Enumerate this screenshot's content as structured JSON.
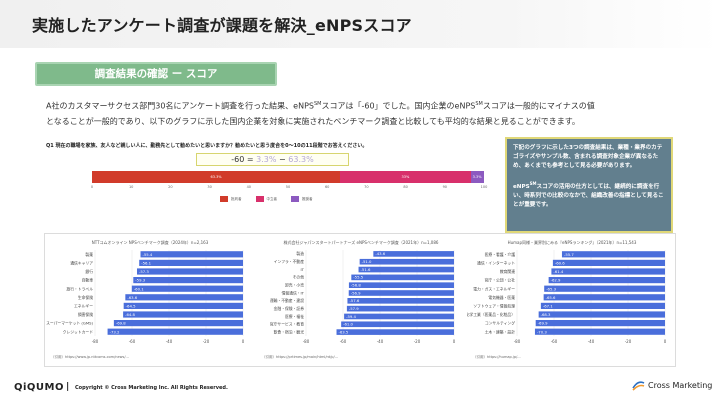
{
  "title": "実施したアンケート調査が課題を解決_eNPSスコア",
  "section_tag": "調査結果の確認 ー スコア",
  "intro": {
    "line1_a": "A社のカスタマーサクセス部門30名にアンケート調査を行った結果、eNPS",
    "sm": "SM",
    "line1_b": "スコアは「-60」でした。国内企業のeNPS",
    "line1_c": "スコアは一般的にマイナスの値",
    "line2": "となることが一般的であり、以下のグラフに示した国内企業を対象に実施されたベンチマーク調査と比較しても平均的な結果と見ることができます。"
  },
  "question": {
    "text": "Q1 現在の職場を家族、友人など親しい人に、勤務先として勧めたいと思いますか？勧めたいと思う度合を0〜10の11段階でお答えください。",
    "formula_value": "-60 = ",
    "formula_a": "3.3%",
    "formula_sep": " − ",
    "formula_b": "63.3%"
  },
  "stack_chart": {
    "segments": [
      {
        "name": "批判者",
        "value": 63.3,
        "label": "63.3%",
        "color": "#d13b2a"
      },
      {
        "name": "中立者",
        "value": 33.3,
        "label": "33%",
        "color": "#d8306b"
      },
      {
        "name": "推奨者",
        "value": 3.3,
        "label": "3.3%",
        "color": "#8c5ac0"
      }
    ],
    "axis": [
      "0",
      "10",
      "20",
      "30",
      "40",
      "50",
      "60",
      "70",
      "80",
      "90",
      "100"
    ],
    "legend": [
      "批判者",
      "中立者",
      "推奨者"
    ]
  },
  "note": {
    "p1": "下記のグラフに示した3つの調査結果は、業種・業界のカテゴライズやサンプル数、含まれる調査対象企業が異なるため、あくまでも参考として見る必要があります。",
    "p2a": "eNPS",
    "p2sm": "SM",
    "p2b": "スコアの活用の仕方としては、継続的に調査を行い、時系列での比較のなかで、組織改善の指標として見ることが重要です。"
  },
  "chart_data": [
    {
      "type": "bar",
      "orientation": "horizontal",
      "title": "NTTコムオンライン NPSベンチマーク調査（2024年）n=2,163",
      "categories": [
        "製薬",
        "通信キャリア",
        "銀行",
        "自動車",
        "旅行・トラベル",
        "生命保険",
        "エネルギー",
        "損害保険",
        "スーパーマーケット (GMS)",
        "クレジットカード"
      ],
      "values": [
        -55.4,
        -56.1,
        -57.3,
        -59.3,
        -60.1,
        -63.6,
        -64.5,
        -64.8,
        -69.8,
        -73.2
      ],
      "xlim": [
        -80,
        0
      ],
      "xticks": [
        "-80",
        "-60",
        "-40",
        "-20",
        "0"
      ],
      "source": "（引用）https://www.jp.nttcoms.com/news/..."
    },
    {
      "type": "bar",
      "orientation": "horizontal",
      "title": "株式会社ジャパンスタートパートナーズ eNPSベンチマーク調査（2021年）n=1,086",
      "categories": [
        "製造",
        "インフラ・不動産",
        "IT",
        "その他",
        "卸売・小売",
        "情報通信・IT",
        "運輸・不動産・建設",
        "金融・保険・証券",
        "医療・福祉",
        "官庁サービス・教育",
        "飲食・宿泊・観光"
      ],
      "values": [
        -43.6,
        -51.0,
        -51.6,
        -55.5,
        -56.8,
        -56.9,
        -57.6,
        -57.9,
        -59.4,
        -61.0,
        -63.5
      ],
      "xlim": [
        -80,
        0
      ],
      "xticks": [
        "-80",
        "-60",
        "-40",
        "-20",
        "0"
      ],
      "source": "（引用）https://prtimes.jp/main/html/rd/p/..."
    },
    {
      "type": "bar",
      "orientation": "horizontal",
      "title": "Humap同様・業界別にみる『eNPSランキング』（2021年）n=11,543",
      "categories": [
        "医療・看護・介護",
        "通信・インターネット",
        "教育関連",
        "官庁・公団・公社",
        "電力・ガス・エネルギー",
        "電気機器・医薬",
        "ソフトウェア・情報処理",
        "化学工業（医薬品・化粧品）",
        "コンサルティング",
        "土木・建築・設計"
      ],
      "values": [
        -55.7,
        -60.6,
        -61.4,
        -62.9,
        -65.3,
        -65.6,
        -67.1,
        -68.3,
        -69.9,
        -70.3
      ],
      "xlim": [
        -80,
        0
      ],
      "xticks": [
        "-80",
        "-60",
        "-40",
        "-20",
        "0"
      ],
      "source": "（引用）https://humap.jp/..."
    }
  ],
  "footer": {
    "logo": "QiQUMO",
    "sep": "|",
    "copyright": "Copyright © Cross Marketing Inc. All Rights Reserved.",
    "brand": "Cross Marketing"
  },
  "colors": {
    "accent_green": "#7fba8b",
    "note_bg": "#627f8e",
    "bar_blue": "#4a6edb"
  }
}
